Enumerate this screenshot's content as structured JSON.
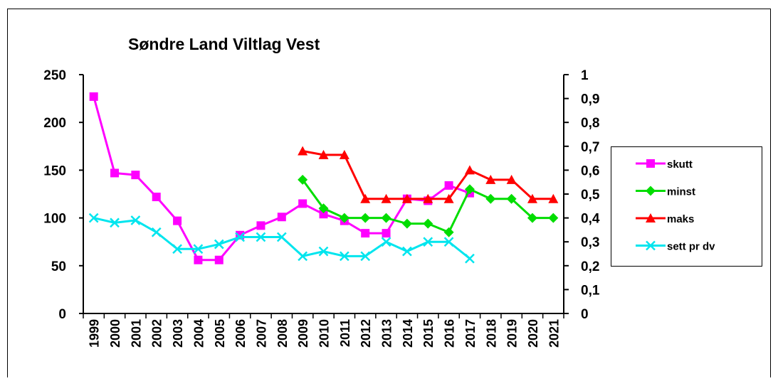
{
  "chart_data": {
    "type": "line",
    "title": "Søndre Land Viltlag Vest",
    "categories": [
      "1999",
      "2000",
      "2001",
      "2002",
      "2003",
      "2004",
      "2005",
      "2006",
      "2007",
      "2008",
      "2009",
      "2010",
      "2011",
      "2012",
      "2013",
      "2014",
      "2015",
      "2016",
      "2017",
      "2018",
      "2019",
      "2020",
      "2021"
    ],
    "series": [
      {
        "name": "skutt",
        "color": "#ff00ff",
        "marker": "square",
        "values": [
          227,
          147,
          145,
          122,
          97,
          56,
          56,
          82,
          92,
          101,
          115,
          104,
          97,
          84,
          84,
          120,
          118,
          134,
          126,
          null,
          null,
          null,
          null
        ]
      },
      {
        "name": "minst",
        "color": "#00dd00",
        "marker": "diamond",
        "values": [
          null,
          null,
          null,
          null,
          null,
          null,
          null,
          null,
          null,
          null,
          140,
          110,
          100,
          100,
          100,
          94,
          94,
          85,
          130,
          120,
          120,
          100,
          100
        ]
      },
      {
        "name": "maks",
        "color": "#ff0000",
        "marker": "triangle",
        "values": [
          null,
          null,
          null,
          null,
          null,
          null,
          null,
          null,
          null,
          null,
          170,
          166,
          166,
          120,
          120,
          120,
          120,
          120,
          150,
          140,
          140,
          120,
          120
        ]
      },
      {
        "name": "sett pr dv",
        "color": "#00e5ee",
        "marker": "x",
        "axis": "y2",
        "values": [
          0.4,
          0.38,
          0.39,
          0.34,
          0.27,
          0.27,
          0.29,
          0.32,
          0.32,
          0.32,
          0.24,
          0.26,
          0.24,
          0.24,
          0.3,
          0.26,
          0.3,
          0.3,
          0.23,
          null,
          null,
          null,
          null
        ]
      }
    ],
    "ylim": [
      0,
      250
    ],
    "yticks": [
      0,
      50,
      100,
      150,
      200,
      250
    ],
    "y2lim": [
      0,
      1
    ],
    "y2ticks": [
      0,
      {
        "value": 0.1,
        "label": "0,1"
      },
      {
        "value": 0.2,
        "label": "0,2"
      },
      {
        "value": 0.3,
        "label": "0,3"
      },
      {
        "value": 0.4,
        "label": "0,4"
      },
      {
        "value": 0.5,
        "label": "0,5"
      },
      {
        "value": 0.6,
        "label": "0,6"
      },
      {
        "value": 0.7,
        "label": "0,7"
      },
      {
        "value": 0.8,
        "label": "0,8"
      },
      {
        "value": 0.9,
        "label": "0,9"
      },
      1
    ],
    "legend": "right"
  }
}
